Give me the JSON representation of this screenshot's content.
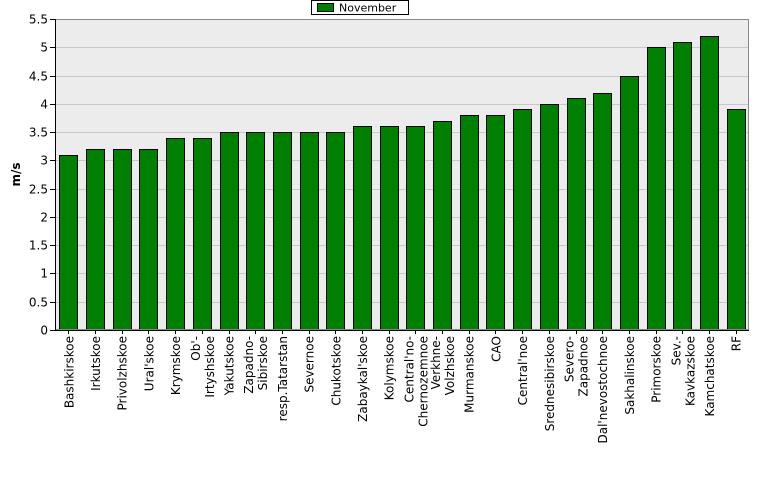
{
  "chart_data": {
    "type": "bar",
    "ylabel": "m/s",
    "xlabel": "",
    "ylim": [
      0,
      5.5
    ],
    "yticks": [
      0,
      0.5,
      1,
      1.5,
      2,
      2.5,
      3,
      3.5,
      4,
      4.5,
      5,
      5.5
    ],
    "grid": true,
    "legend_position": "top-center",
    "categories": [
      "Bashkirskoe",
      "Irkutskoe",
      "Privolzhskoe",
      "Ural'skoe",
      "Krymskoe",
      "Ob'-Irtyshskoe",
      "Yakutskoe",
      "Zapadno-Sibirskoe",
      "resp.Tatarstan",
      "Severnoe",
      "Chukotskoe",
      "Zabaykal'skoe",
      "Kolymskoe",
      "Central'no-Chernozemnoe",
      "Verkhne-Volzhskoe",
      "Murmanskoe",
      "CAO",
      "Central'noe",
      "Srednesibirskoe",
      "Severo-Zapadnoe",
      "Dal'nevostochnoe",
      "Sakhalinskoe",
      "Primorskoe",
      "Sev.-Kavkazskoe",
      "Kamchatskoe",
      "RF"
    ],
    "tick_labels": [
      [
        "Bashkirskoe"
      ],
      [
        "Irkutskoe"
      ],
      [
        "Privolzhskoe"
      ],
      [
        "Ural'skoe"
      ],
      [
        "Krymskoe"
      ],
      [
        "Ob'-",
        "Irtyshskoe"
      ],
      [
        "Yakutskoe"
      ],
      [
        "Zapadno-",
        "Sibirskoe"
      ],
      [
        "resp.Tatarstan"
      ],
      [
        "Severnoe"
      ],
      [
        "Chukotskoe"
      ],
      [
        "Zabaykal'skoe"
      ],
      [
        "Kolymskoe"
      ],
      [
        "Central'no-",
        "Chernozemnoe"
      ],
      [
        "Verkhne-",
        "Volzhskoe"
      ],
      [
        "Murmanskoe"
      ],
      [
        "CAO"
      ],
      [
        "Central'noe"
      ],
      [
        "Srednesibirskoe"
      ],
      [
        "Severo-",
        "Zapadnoe"
      ],
      [
        "Dal'nevostochnoe"
      ],
      [
        "Sakhalinskoe"
      ],
      [
        "Primorskoe"
      ],
      [
        "Sev.-",
        "Kavkazskoe"
      ],
      [
        "Kamchatskoe"
      ],
      [
        "RF"
      ]
    ],
    "series": [
      {
        "name": "November",
        "color": "#008000",
        "values": [
          3.1,
          3.2,
          3.2,
          3.2,
          3.4,
          3.4,
          3.5,
          3.5,
          3.5,
          3.5,
          3.5,
          3.6,
          3.6,
          3.6,
          3.7,
          3.8,
          3.8,
          3.9,
          4.0,
          4.1,
          4.2,
          4.5,
          5.0,
          5.1,
          5.2,
          3.9
        ]
      }
    ],
    "colors": {
      "plot_background": "#ececec",
      "grid_line": "#c8c8c8",
      "bar_outline": "#000000",
      "axis_line": "#000000"
    }
  }
}
